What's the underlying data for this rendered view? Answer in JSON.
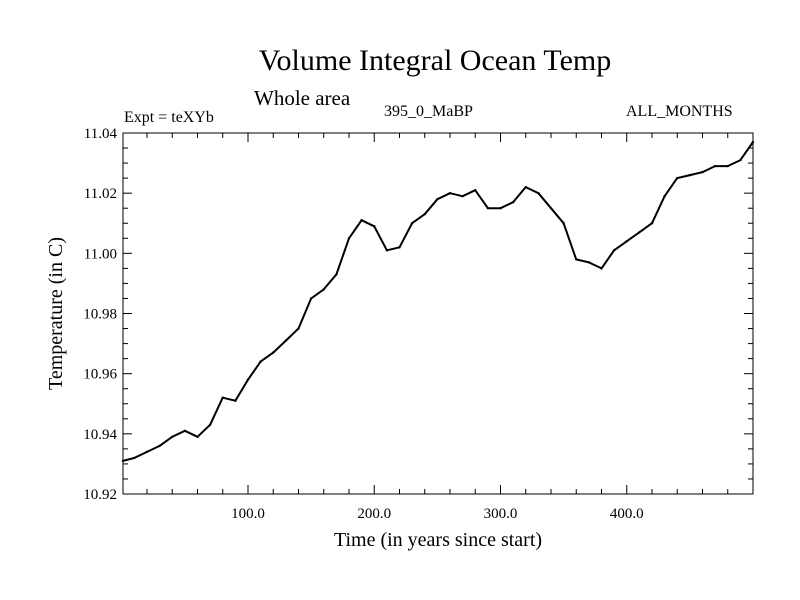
{
  "header": {
    "title": "Volume Integral Ocean Temp",
    "subtitle": "Whole area",
    "experiment": "Expt = teXYb",
    "experiment_name": "395_0_MaBP",
    "months": "ALL_MONTHS"
  },
  "chart_data": {
    "type": "line",
    "title": "Volume Integral Ocean Temp",
    "subtitle": "Whole area",
    "xlabel": "Time (in years since start)",
    "ylabel": "Temperature (in C)",
    "xlim": [
      1,
      500
    ],
    "ylim": [
      10.92,
      11.04
    ],
    "x_ticks": [
      100,
      200,
      300,
      400
    ],
    "x_tick_labels": [
      "100.0",
      "200.0",
      "300.0",
      "400.0"
    ],
    "y_ticks": [
      10.92,
      10.94,
      10.96,
      10.98,
      11.0,
      11.02,
      11.04
    ],
    "y_tick_labels": [
      "10.92",
      "10.94",
      "10.96",
      "10.98",
      "11.00",
      "11.02",
      "11.04"
    ],
    "grid": false,
    "line_color": "#000000",
    "series": [
      {
        "x": [
          1,
          10,
          20,
          30,
          40,
          50,
          60,
          70,
          80,
          90,
          100,
          110,
          120,
          130,
          140,
          150,
          160,
          170,
          180,
          190,
          200,
          210,
          220,
          230,
          240,
          250,
          260,
          270,
          280,
          290,
          300,
          310,
          320,
          330,
          340,
          350,
          360,
          370,
          380,
          390,
          400,
          410,
          420,
          430,
          440,
          450,
          460,
          470,
          480,
          490,
          500
        ],
        "values": [
          10.931,
          10.932,
          10.934,
          10.936,
          10.939,
          10.941,
          10.939,
          10.943,
          10.952,
          10.951,
          10.958,
          10.964,
          10.967,
          10.971,
          10.975,
          10.985,
          10.988,
          10.993,
          11.005,
          11.011,
          11.009,
          11.001,
          11.002,
          11.01,
          11.013,
          11.018,
          11.02,
          11.019,
          11.021,
          11.015,
          11.015,
          11.017,
          11.022,
          11.02,
          11.015,
          11.01,
          10.998,
          10.997,
          10.995,
          11.001,
          11.004,
          11.007,
          11.01,
          11.019,
          11.025,
          11.026,
          11.027,
          11.029,
          11.029,
          11.031,
          11.037
        ]
      }
    ]
  }
}
